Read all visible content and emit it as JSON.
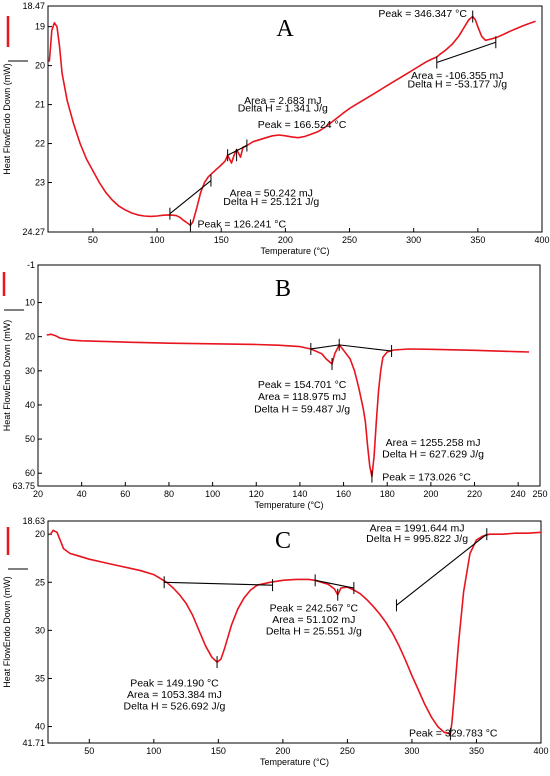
{
  "chart_data": [
    {
      "type": "line",
      "panel_label": "A",
      "xlabel": "Temperature (°C)",
      "ylabel": "Heat FlowEndo Down (mW)",
      "xlim": [
        15,
        400
      ],
      "ylim": [
        24.27,
        18.47
      ],
      "y_inverted": true,
      "xticks": [
        50,
        100,
        150,
        200,
        250,
        300,
        350,
        400
      ],
      "yticks": [
        18.47,
        19,
        20,
        21,
        22,
        23,
        24.27
      ],
      "ytick_labels": [
        "18.47",
        "19",
        "20",
        "21",
        "22",
        "23",
        "24.27"
      ],
      "grid": false,
      "legend": "left-outside",
      "series_color": "#e8141e",
      "series": [
        {
          "x": [
            16,
            17,
            18,
            20,
            22,
            24,
            26,
            30,
            35,
            40,
            45,
            50,
            55,
            60,
            65,
            70,
            75,
            80,
            85,
            90,
            95,
            100,
            105,
            110,
            115,
            118,
            121,
            124,
            126,
            128,
            131,
            134,
            137,
            140,
            145,
            150,
            153,
            155,
            158,
            160,
            162,
            165,
            167,
            170,
            175,
            180,
            185,
            190,
            195,
            200,
            205,
            210,
            215,
            220,
            225,
            230,
            235,
            240,
            245,
            250,
            255,
            260,
            265,
            270,
            275,
            280,
            285,
            290,
            295,
            300,
            305,
            310,
            315,
            318,
            320,
            325,
            330,
            335,
            340,
            343,
            346,
            348,
            350,
            353,
            356,
            360,
            365,
            370,
            375,
            380,
            385,
            390,
            395
          ],
          "y": [
            19.9,
            19.5,
            19.1,
            18.9,
            19.0,
            19.5,
            20.2,
            20.9,
            21.5,
            22.0,
            22.4,
            22.7,
            23.0,
            23.25,
            23.45,
            23.6,
            23.7,
            23.78,
            23.83,
            23.86,
            23.87,
            23.86,
            23.84,
            23.83,
            23.85,
            23.9,
            23.98,
            24.05,
            24.1,
            24.0,
            23.65,
            23.25,
            23.0,
            22.85,
            22.7,
            22.55,
            22.45,
            22.3,
            22.5,
            22.3,
            22.15,
            22.35,
            22.1,
            22.05,
            21.95,
            21.9,
            21.85,
            21.8,
            21.78,
            21.8,
            21.83,
            21.85,
            21.82,
            21.76,
            21.7,
            21.6,
            21.48,
            21.35,
            21.22,
            21.1,
            21.0,
            20.9,
            20.8,
            20.7,
            20.6,
            20.5,
            20.4,
            20.3,
            20.2,
            20.1,
            20.0,
            19.9,
            19.82,
            19.78,
            19.72,
            19.6,
            19.45,
            19.25,
            18.98,
            18.82,
            18.74,
            18.82,
            19.0,
            19.25,
            19.35,
            19.32,
            19.27,
            19.2,
            19.12,
            19.05,
            18.98,
            18.92,
            18.86
          ]
        }
      ],
      "baselines": [
        {
          "x": [
            110,
            142
          ],
          "y": [
            23.8,
            22.95
          ]
        },
        {
          "x": [
            155,
            170
          ],
          "y": [
            22.3,
            22.05
          ]
        },
        {
          "x": [
            318,
            364
          ],
          "y": [
            19.92,
            19.4
          ]
        }
      ],
      "markers": [
        {
          "x": 110,
          "y": 23.8
        },
        {
          "x": 126,
          "y": 24.1
        },
        {
          "x": 142,
          "y": 22.95
        },
        {
          "x": 155,
          "y": 22.3
        },
        {
          "x": 162,
          "y": 22.3
        },
        {
          "x": 170,
          "y": 22.05
        },
        {
          "x": 318,
          "y": 19.92
        },
        {
          "x": 346,
          "y": 18.74
        },
        {
          "x": 364,
          "y": 19.4
        }
      ],
      "annotations": [
        {
          "id": "a1",
          "text": "Area = 2.683 mJ",
          "x": 198,
          "y": 20.88
        },
        {
          "id": "a2",
          "text": "Delta H = 1.341 J/g",
          "x": 198,
          "y": 21.08
        },
        {
          "id": "a3",
          "text": "Peak = 166.524 °C",
          "x": 213,
          "y": 21.5
        },
        {
          "id": "a4",
          "text": "Area = 50.242 mJ",
          "x": 189,
          "y": 23.25
        },
        {
          "id": "a5",
          "text": "Delta H = 25.121 J/g",
          "x": 189,
          "y": 23.48
        },
        {
          "id": "a6",
          "text": "Peak = 126.241 °C",
          "x": 166,
          "y": 24.05
        },
        {
          "id": "a7",
          "text": "Peak = 346.347 °C",
          "x": 307,
          "y": 18.65
        },
        {
          "id": "a8",
          "text": "Area = -106.355 mJ",
          "x": 334,
          "y": 20.24
        },
        {
          "id": "a9",
          "text": "Delta H = -53.177 J/g",
          "x": 334,
          "y": 20.46
        }
      ]
    },
    {
      "type": "line",
      "panel_label": "B",
      "xlabel": "Temperature (°C)",
      "ylabel": "Heat FlowEndo Down (mW)",
      "xlim": [
        20,
        250
      ],
      "ylim": [
        63.75,
        -1
      ],
      "y_inverted": true,
      "xticks": [
        20,
        40,
        60,
        80,
        100,
        120,
        140,
        160,
        180,
        200,
        220,
        240,
        250
      ],
      "yticks": [
        -1,
        10,
        20,
        30,
        40,
        50,
        60,
        63.75
      ],
      "ytick_labels": [
        "-1",
        "10",
        "20",
        "30",
        "40",
        "50",
        "60",
        "63.75"
      ],
      "grid": false,
      "legend": "left-outside",
      "series_color": "#e8141e",
      "series": [
        {
          "x": [
            24,
            26,
            28,
            30,
            35,
            40,
            60,
            80,
            100,
            120,
            130,
            140,
            145,
            150,
            152,
            154.7,
            156,
            158,
            160,
            163,
            165,
            167,
            169,
            170,
            171,
            172,
            173,
            174,
            175,
            176,
            177,
            178,
            180,
            183,
            190,
            200,
            220,
            240,
            245
          ],
          "y": [
            19.5,
            19.3,
            19.7,
            20.4,
            21.0,
            21.2,
            21.6,
            21.9,
            22.1,
            22.3,
            22.5,
            22.9,
            23.6,
            25.0,
            26.5,
            28.0,
            25.0,
            22.4,
            24.0,
            26.5,
            30.0,
            35.0,
            41.0,
            45.0,
            52.0,
            58.0,
            61.0,
            55.0,
            45.0,
            36.0,
            30.0,
            26.0,
            24.5,
            23.9,
            23.6,
            23.7,
            24.0,
            24.4,
            24.5
          ]
        }
      ],
      "baselines": [
        {
          "x": [
            145,
            158
          ],
          "y": [
            23.6,
            22.4
          ]
        },
        {
          "x": [
            158,
            182
          ],
          "y": [
            22.4,
            24.2
          ]
        }
      ],
      "markers": [
        {
          "x": 145,
          "y": 23.6
        },
        {
          "x": 154.7,
          "y": 28.0
        },
        {
          "x": 158,
          "y": 22.4
        },
        {
          "x": 173,
          "y": 61.0
        },
        {
          "x": 182,
          "y": 24.2
        }
      ],
      "annotations": [
        {
          "id": "b1",
          "text": "Peak = 154.701 °C",
          "x": 141,
          "y": 33.8
        },
        {
          "id": "b2",
          "text": "Area = 118.975 mJ",
          "x": 141,
          "y": 37.4
        },
        {
          "id": "b3",
          "text": "Delta H = 59.487 J/g",
          "x": 141,
          "y": 41.0
        },
        {
          "id": "b4",
          "text": "Area = 1255.258 mJ",
          "x": 201,
          "y": 50.8
        },
        {
          "id": "b5",
          "text": "Delta H = 627.629 J/g",
          "x": 201,
          "y": 54.3
        },
        {
          "id": "b6",
          "text": "Peak = 173.026 °C",
          "x": 198,
          "y": 60.9
        }
      ]
    },
    {
      "type": "line",
      "panel_label": "C",
      "xlabel": "Temperature (°C)",
      "ylabel": "Heat FlowEndo Down (mW)",
      "xlim": [
        18,
        400
      ],
      "ylim": [
        41.71,
        18.63
      ],
      "y_inverted": true,
      "xticks": [
        50,
        100,
        150,
        200,
        250,
        300,
        350,
        400
      ],
      "yticks": [
        18.63,
        20,
        25,
        30,
        35,
        40,
        41.71
      ],
      "ytick_labels": [
        "18.63",
        "20",
        "25",
        "30",
        "35",
        "40",
        "41.71"
      ],
      "grid": false,
      "legend": "left-outside",
      "series_color": "#e8141e",
      "series": [
        {
          "x": [
            20,
            22,
            25,
            28,
            30,
            35,
            40,
            50,
            60,
            70,
            80,
            90,
            100,
            110,
            115,
            120,
            125,
            130,
            135,
            140,
            145,
            149,
            152,
            155,
            160,
            165,
            170,
            175,
            180,
            190,
            200,
            210,
            220,
            225,
            230,
            235,
            240,
            242.5,
            245,
            250,
            255,
            260,
            265,
            270,
            275,
            280,
            285,
            290,
            295,
            300,
            305,
            310,
            315,
            320,
            325,
            328,
            329.8,
            331,
            333,
            336,
            340,
            345,
            350,
            355,
            360,
            370,
            380,
            390,
            400
          ],
          "y": [
            20.0,
            19.6,
            19.8,
            20.8,
            21.5,
            22.0,
            22.2,
            22.6,
            22.9,
            23.2,
            23.5,
            23.8,
            24.2,
            25.0,
            25.6,
            26.3,
            27.2,
            28.4,
            30.0,
            31.6,
            32.8,
            33.3,
            33.0,
            31.8,
            29.5,
            27.8,
            26.6,
            25.8,
            25.3,
            25.0,
            24.8,
            24.7,
            24.7,
            24.8,
            25.0,
            25.2,
            25.7,
            26.3,
            25.6,
            25.5,
            25.8,
            26.2,
            26.8,
            27.5,
            28.3,
            29.2,
            30.3,
            31.6,
            33.1,
            34.7,
            36.2,
            37.7,
            39.0,
            40.0,
            40.6,
            40.7,
            40.8,
            39.5,
            36.5,
            31.5,
            26.0,
            22.0,
            20.6,
            20.2,
            20.0,
            20.0,
            19.9,
            19.9,
            19.8
          ]
        }
      ],
      "baselines": [
        {
          "x": [
            108,
            192
          ],
          "y": [
            25.0,
            25.3
          ]
        },
        {
          "x": [
            225,
            255
          ],
          "y": [
            24.8,
            25.6
          ]
        },
        {
          "x": [
            288,
            358
          ],
          "y": [
            27.4,
            20.0
          ]
        }
      ],
      "markers": [
        {
          "x": 108,
          "y": 25.0
        },
        {
          "x": 149,
          "y": 33.3
        },
        {
          "x": 192,
          "y": 25.3
        },
        {
          "x": 225,
          "y": 24.8
        },
        {
          "x": 242.5,
          "y": 26.3
        },
        {
          "x": 255,
          "y": 25.6
        },
        {
          "x": 288,
          "y": 27.4
        },
        {
          "x": 329.8,
          "y": 40.8
        },
        {
          "x": 358,
          "y": 20.0
        }
      ],
      "annotations": [
        {
          "id": "c1",
          "text": "Area = 1991.644 mJ",
          "x": 304,
          "y": 19.3
        },
        {
          "id": "c2",
          "text": "Delta H = 995.822 J/g",
          "x": 304,
          "y": 20.4
        },
        {
          "id": "c3",
          "text": "Peak = 242.567 °C",
          "x": 224,
          "y": 27.6
        },
        {
          "id": "c4",
          "text": "Area = 51.102 mJ",
          "x": 224,
          "y": 28.8
        },
        {
          "id": "c5",
          "text": "Delta H = 25.551 J/g",
          "x": 224,
          "y": 30.0
        },
        {
          "id": "c6",
          "text": "Peak = 149.190 °C",
          "x": 116,
          "y": 35.4
        },
        {
          "id": "c7",
          "text": "Area = 1053.384 mJ",
          "x": 116,
          "y": 36.6
        },
        {
          "id": "c8",
          "text": "Delta H = 526.692 J/g",
          "x": 116,
          "y": 37.8
        },
        {
          "id": "c9",
          "text": "Peak = 329.783 °C",
          "x": 332,
          "y": 40.6
        }
      ]
    }
  ]
}
